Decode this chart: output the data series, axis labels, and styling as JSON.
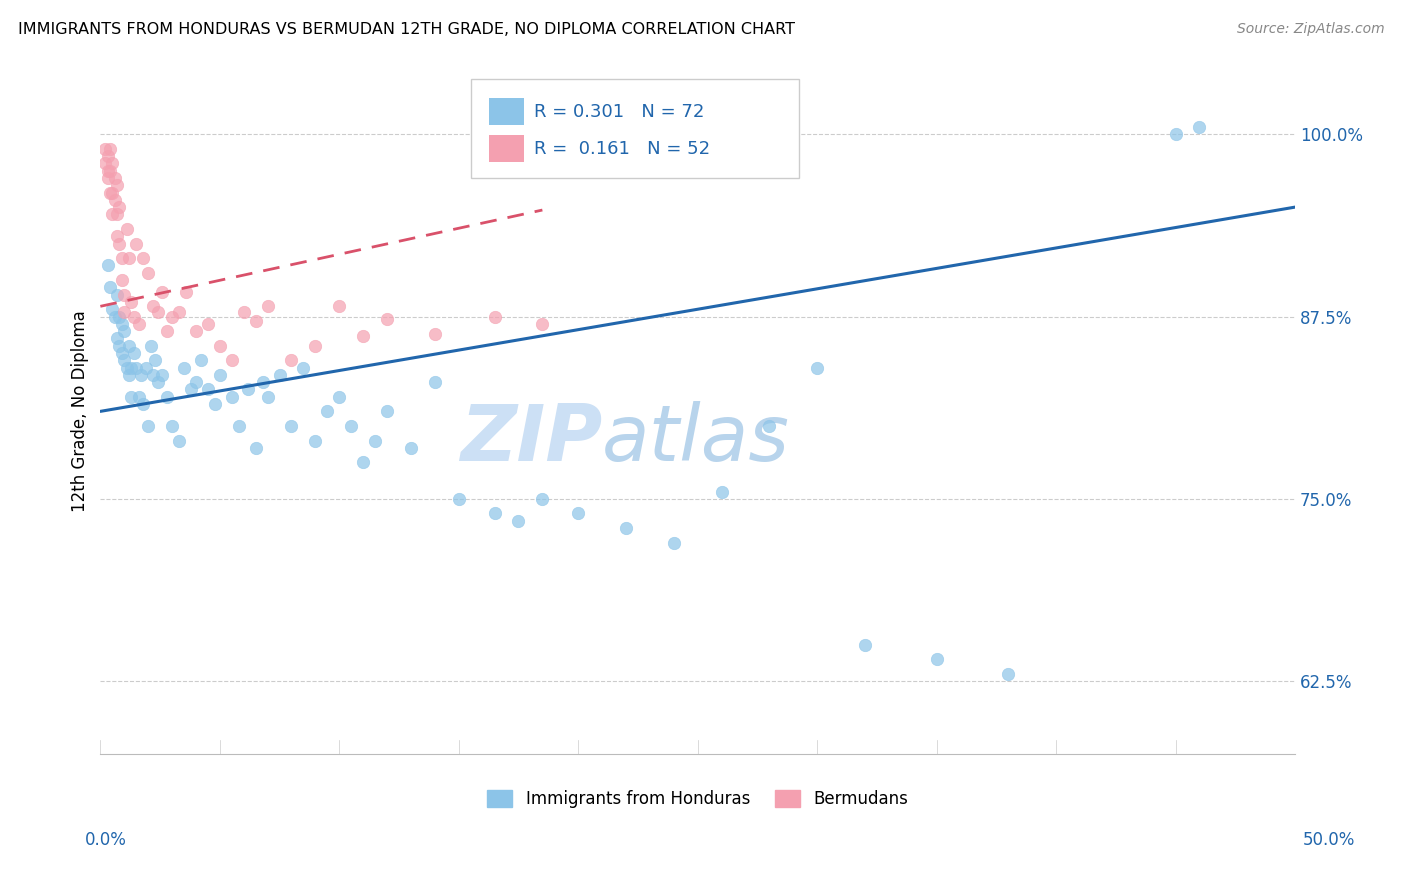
{
  "title": "IMMIGRANTS FROM HONDURAS VS BERMUDAN 12TH GRADE, NO DIPLOMA CORRELATION CHART",
  "source": "Source: ZipAtlas.com",
  "ylabel": "12th Grade, No Diploma",
  "yticks": [
    0.625,
    0.75,
    0.875,
    1.0
  ],
  "ytick_labels": [
    "62.5%",
    "75.0%",
    "87.5%",
    "100.0%"
  ],
  "xmin": 0.0,
  "xmax": 0.5,
  "ymin": 0.575,
  "ymax": 1.045,
  "blue_color": "#8cc4e8",
  "pink_color": "#f4a0b0",
  "line_blue": "#2166ac",
  "line_pink": "#d9516a",
  "r_n_color": "#2166ac",
  "watermark": "ZIPatlas",
  "watermark_zip_color": "#cce0f5",
  "watermark_atlas_color": "#b0cceb",
  "blue_scatter_x": [
    0.003,
    0.004,
    0.005,
    0.006,
    0.007,
    0.007,
    0.008,
    0.008,
    0.009,
    0.009,
    0.01,
    0.01,
    0.011,
    0.012,
    0.012,
    0.013,
    0.013,
    0.014,
    0.015,
    0.016,
    0.017,
    0.018,
    0.019,
    0.02,
    0.021,
    0.022,
    0.023,
    0.024,
    0.026,
    0.028,
    0.03,
    0.033,
    0.035,
    0.038,
    0.04,
    0.042,
    0.045,
    0.048,
    0.05,
    0.055,
    0.058,
    0.062,
    0.065,
    0.068,
    0.07,
    0.075,
    0.08,
    0.085,
    0.09,
    0.095,
    0.1,
    0.105,
    0.11,
    0.115,
    0.12,
    0.13,
    0.14,
    0.15,
    0.165,
    0.175,
    0.185,
    0.2,
    0.22,
    0.24,
    0.26,
    0.28,
    0.3,
    0.32,
    0.35,
    0.38,
    0.45,
    0.46
  ],
  "blue_scatter_y": [
    0.91,
    0.895,
    0.88,
    0.875,
    0.89,
    0.86,
    0.875,
    0.855,
    0.87,
    0.85,
    0.865,
    0.845,
    0.84,
    0.855,
    0.835,
    0.84,
    0.82,
    0.85,
    0.84,
    0.82,
    0.835,
    0.815,
    0.84,
    0.8,
    0.855,
    0.835,
    0.845,
    0.83,
    0.835,
    0.82,
    0.8,
    0.79,
    0.84,
    0.825,
    0.83,
    0.845,
    0.825,
    0.815,
    0.835,
    0.82,
    0.8,
    0.825,
    0.785,
    0.83,
    0.82,
    0.835,
    0.8,
    0.84,
    0.79,
    0.81,
    0.82,
    0.8,
    0.775,
    0.79,
    0.81,
    0.785,
    0.83,
    0.75,
    0.74,
    0.735,
    0.75,
    0.74,
    0.73,
    0.72,
    0.755,
    0.8,
    0.84,
    0.65,
    0.64,
    0.63,
    1.0,
    1.005
  ],
  "pink_scatter_x": [
    0.002,
    0.002,
    0.003,
    0.003,
    0.003,
    0.004,
    0.004,
    0.004,
    0.005,
    0.005,
    0.005,
    0.006,
    0.006,
    0.007,
    0.007,
    0.007,
    0.008,
    0.008,
    0.009,
    0.009,
    0.01,
    0.01,
    0.011,
    0.012,
    0.013,
    0.014,
    0.015,
    0.016,
    0.018,
    0.02,
    0.022,
    0.024,
    0.026,
    0.028,
    0.03,
    0.033,
    0.036,
    0.04,
    0.045,
    0.05,
    0.055,
    0.06,
    0.065,
    0.07,
    0.08,
    0.09,
    0.1,
    0.11,
    0.12,
    0.14,
    0.165,
    0.185
  ],
  "pink_scatter_y": [
    0.99,
    0.98,
    0.985,
    0.975,
    0.97,
    0.99,
    0.975,
    0.96,
    0.98,
    0.96,
    0.945,
    0.97,
    0.955,
    0.965,
    0.945,
    0.93,
    0.95,
    0.925,
    0.915,
    0.9,
    0.89,
    0.878,
    0.935,
    0.915,
    0.885,
    0.875,
    0.925,
    0.87,
    0.915,
    0.905,
    0.882,
    0.878,
    0.892,
    0.865,
    0.875,
    0.878,
    0.892,
    0.865,
    0.87,
    0.855,
    0.845,
    0.878,
    0.872,
    0.882,
    0.845,
    0.855,
    0.882,
    0.862,
    0.873,
    0.863,
    0.875,
    0.87
  ],
  "blue_line_x": [
    0.0,
    0.5
  ],
  "blue_line_y": [
    0.81,
    0.95
  ],
  "pink_line_x": [
    0.0,
    0.185
  ],
  "pink_line_y": [
    0.882,
    0.948
  ],
  "grid_color": "#cccccc",
  "legend_blue_label": "Immigrants from Honduras",
  "legend_pink_label": "Bermudans",
  "legend_r1": "R = 0.301",
  "legend_n1": "N = 72",
  "legend_r2": "R =  0.161",
  "legend_n2": "N = 52"
}
